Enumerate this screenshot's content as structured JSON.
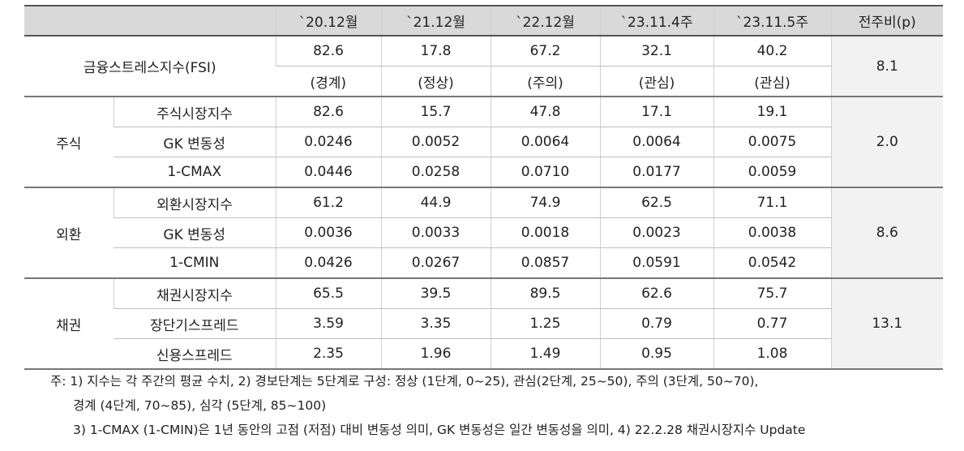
{
  "table": {
    "header": [
      "`20.12월",
      "`21.12월",
      "`22.12월",
      "`23.11.4주",
      "`23.11.5주",
      "전주비(p)"
    ],
    "fsi": {
      "label": "금융스트레스지수(FSI)",
      "values": [
        "82.6",
        "17.8",
        "67.2",
        "32.1",
        "40.2"
      ],
      "levels": [
        "(경계)",
        "(정상)",
        "(주의)",
        "(관심)",
        "(관심)"
      ],
      "change": "8.1"
    },
    "groups": [
      {
        "name": "주식",
        "change": "2.0",
        "rows": [
          {
            "label": "주식시장지수",
            "values": [
              "82.6",
              "15.7",
              "47.8",
              "17.1",
              "19.1"
            ]
          },
          {
            "label": "GK 변동성",
            "values": [
              "0.0246",
              "0.0052",
              "0.0064",
              "0.0064",
              "0.0075"
            ]
          },
          {
            "label": "1-CMAX",
            "values": [
              "0.0446",
              "0.0258",
              "0.0710",
              "0.0177",
              "0.0059"
            ]
          }
        ]
      },
      {
        "name": "외환",
        "change": "8.6",
        "rows": [
          {
            "label": "외환시장지수",
            "values": [
              "61.2",
              "44.9",
              "74.9",
              "62.5",
              "71.1"
            ]
          },
          {
            "label": "GK 변동성",
            "values": [
              "0.0036",
              "0.0033",
              "0.0018",
              "0.0023",
              "0.0038"
            ]
          },
          {
            "label": "1-CMIN",
            "values": [
              "0.0426",
              "0.0267",
              "0.0857",
              "0.0591",
              "0.0542"
            ]
          }
        ]
      },
      {
        "name": "채권",
        "change": "13.1",
        "rows": [
          {
            "label": "채권시장지수",
            "values": [
              "65.5",
              "39.5",
              "89.5",
              "62.6",
              "75.7"
            ]
          },
          {
            "label": "장단기스프레드",
            "values": [
              "3.59",
              "3.35",
              "1.25",
              "0.79",
              "0.77"
            ]
          },
          {
            "label": "신용스프레드",
            "values": [
              "2.35",
              "1.96",
              "1.49",
              "0.95",
              "1.08"
            ]
          }
        ]
      }
    ]
  },
  "notes": [
    "주: 1) 지수는 각 주간의 평균 수치, 2) 경보단계는 5단계로 구성: 정상 (1단계, 0~25), 관심(2단계, 25~50), 주의 (3단계, 50~70),",
    "경계 (4단계, 70~85), 심각 (5단계, 85~100)",
    "3) 1-CMAX (1-CMIN)은 1년 동안의 고점 (저점) 대비 변동성 의미, GK 변동성은 일간 변동성을 의미, 4) 22.2.28 채권시장지수 Update"
  ]
}
